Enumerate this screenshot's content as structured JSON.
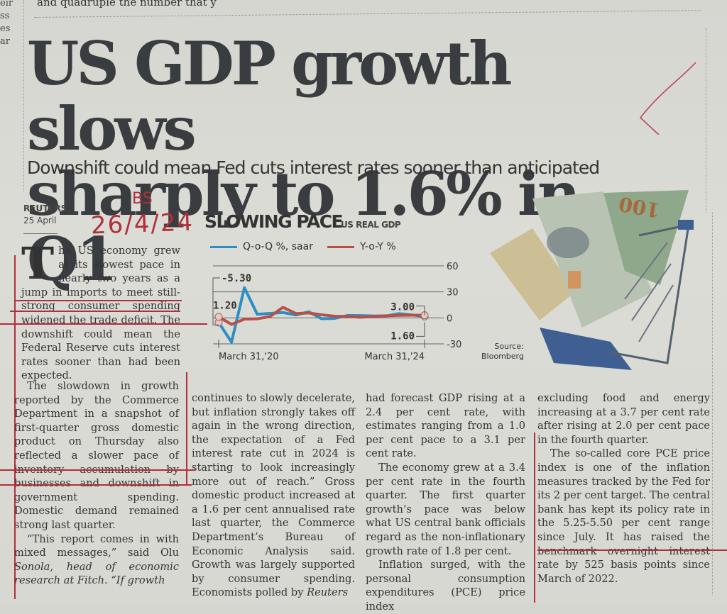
{
  "edge_snippet": [
    "eir",
    "ss",
    "es",
    "ar"
  ],
  "top_snippet": "and quadruple the number that y",
  "headline": {
    "line1": "US GDP growth slows",
    "line2": "sharply to 1.6% in Q1"
  },
  "deck": "Downshift could mean Fed cuts interest rates sooner than anticipated",
  "byline": "REUTERS",
  "dateline": "25 April",
  "handwriting": {
    "date": "26/4/24",
    "code": "BS"
  },
  "article": {
    "dropcap": "T",
    "lead": "he US economy grew at its slowest pace in nearly two years as a jump in imports to meet still-strong consumer spending widened the trade deficit. The downshift could mean the Federal Reserve cuts interest rates sooner than had been expected.",
    "col1_p2": "The slowdown in growth reported by the Commerce Department in a snapshot of first-quarter gross domestic product on Thursday also reflected a slower pace of inventory accumulation by businesses and downshift in government spending. Domestic demand remained strong last quarter.",
    "col1_p3_a": "“This report comes in with mixed messages,” said Olu ",
    "col1_p3_b": "Sonola, head of economic research at Fitch.",
    "col1_p3_c": " “If growth",
    "col2_a": "continues to slowly decelerate, but inflation strongly takes off again in the wrong direction, the expectation of a Fed interest rate cut in 2024 is starting to look increasingly more out of reach.” Gross domestic product increased at a 1.6 per cent annualised rate last quarter, the Commerce Department’s Bureau of Economic Analysis said. Growth was largely supported by consumer spending. Economists polled by ",
    "col2_b": "Reuters",
    "col3_p1": "had forecast GDP rising at a 2.4 per cent rate, with estimates ranging from a 1.0 per cent pace to a 3.1 per cent rate.",
    "col3_p2": "The economy grew at a 3.4 per cent rate in the fourth quarter. The first quarter growth’s pace was below what US central bank officials regard as the non-inflationary growth rate of 1.8 per cent.",
    "col3_p3": "Inflation surged, with the personal consumption expenditures (PCE) price index",
    "col4_p1": "excluding food and energy increasing at a 3.7 per cent rate after rising at 2.0 per cent pace in the fourth quarter.",
    "col4_p2": "The so-called core PCE price index is one of the inflation measures tracked by the Fed for its 2 per cent target. The central bank has kept its policy rate in the 5.25-5.50 per cent range since July. It has raised the benchmark overnight interest rate by 525 basis points since March of 2022."
  },
  "chart_data": {
    "type": "line",
    "title": "SLOWING PACE",
    "subtitle": "US REAL GDP",
    "xlabel": "",
    "ylabel": "",
    "ylim": [
      -30,
      60
    ],
    "yticks": [
      60,
      30,
      0,
      -30
    ],
    "xtick_labels": [
      "March 31,'20",
      "March 31,'24"
    ],
    "x": [
      "Q1'20",
      "Q2'20",
      "Q3'20",
      "Q4'20",
      "Q1'21",
      "Q2'21",
      "Q3'21",
      "Q4'21",
      "Q1'22",
      "Q2'22",
      "Q3'22",
      "Q4'22",
      "Q1'23",
      "Q2'23",
      "Q3'23",
      "Q4'23",
      "Q1'24"
    ],
    "series": [
      {
        "name": "Q-o-Q %, saar",
        "color": "#2a8fc4",
        "values": [
          -5.3,
          -28.0,
          34.8,
          4.2,
          5.2,
          6.2,
          3.3,
          7.0,
          -1.0,
          -0.6,
          2.7,
          2.6,
          2.2,
          2.1,
          4.9,
          3.4,
          1.6
        ]
      },
      {
        "name": "Y-o-Y %",
        "color": "#b8504a",
        "values": [
          1.2,
          -7.5,
          -1.5,
          -1.1,
          1.6,
          12.2,
          5.0,
          5.7,
          3.6,
          1.9,
          1.7,
          0.7,
          1.7,
          2.4,
          2.9,
          3.1,
          3.0
        ]
      }
    ],
    "annotations": [
      {
        "label": "-5.30",
        "series": "Q-o-Q %, saar",
        "point": "Q1'20"
      },
      {
        "label": "1.20",
        "series": "Y-o-Y %",
        "point": "Q1'20"
      },
      {
        "label": "3.00",
        "series": "Y-o-Y %",
        "point": "Q1'24"
      },
      {
        "label": "1.60",
        "series": "Q-o-Q %, saar",
        "point": "Q1'24"
      }
    ],
    "grid": true,
    "legend": "top-left",
    "source": [
      "Source:",
      "Bloomberg"
    ]
  }
}
